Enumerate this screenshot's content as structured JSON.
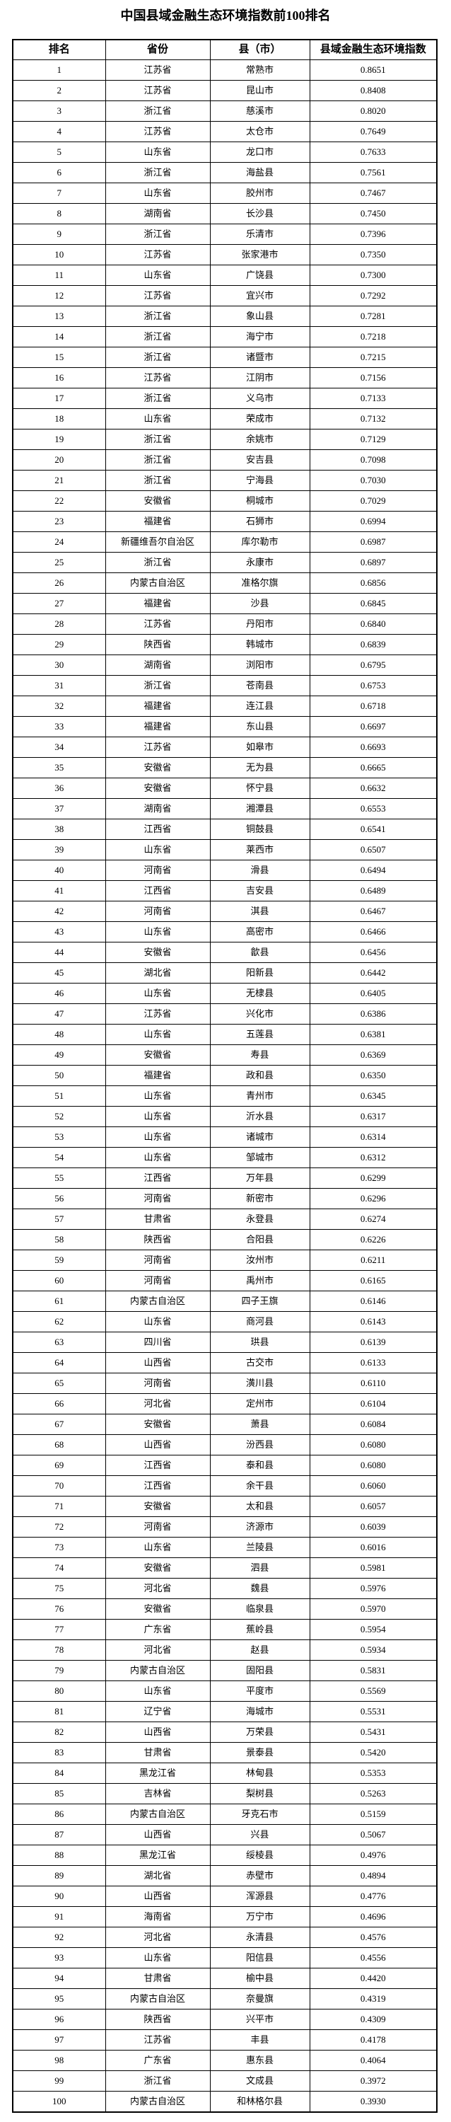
{
  "title": "中国县域金融生态环境指数前100排名",
  "table": {
    "columns": [
      "排名",
      "省份",
      "县（市）",
      "县域金融生态环境指数"
    ],
    "rows": [
      [
        "1",
        "江苏省",
        "常熟市",
        "0.8651"
      ],
      [
        "2",
        "江苏省",
        "昆山市",
        "0.8408"
      ],
      [
        "3",
        "浙江省",
        "慈溪市",
        "0.8020"
      ],
      [
        "4",
        "江苏省",
        "太仓市",
        "0.7649"
      ],
      [
        "5",
        "山东省",
        "龙口市",
        "0.7633"
      ],
      [
        "6",
        "浙江省",
        "海盐县",
        "0.7561"
      ],
      [
        "7",
        "山东省",
        "胶州市",
        "0.7467"
      ],
      [
        "8",
        "湖南省",
        "长沙县",
        "0.7450"
      ],
      [
        "9",
        "浙江省",
        "乐清市",
        "0.7396"
      ],
      [
        "10",
        "江苏省",
        "张家港市",
        "0.7350"
      ],
      [
        "11",
        "山东省",
        "广饶县",
        "0.7300"
      ],
      [
        "12",
        "江苏省",
        "宜兴市",
        "0.7292"
      ],
      [
        "13",
        "浙江省",
        "象山县",
        "0.7281"
      ],
      [
        "14",
        "浙江省",
        "海宁市",
        "0.7218"
      ],
      [
        "15",
        "浙江省",
        "诸暨市",
        "0.7215"
      ],
      [
        "16",
        "江苏省",
        "江阴市",
        "0.7156"
      ],
      [
        "17",
        "浙江省",
        "义乌市",
        "0.7133"
      ],
      [
        "18",
        "山东省",
        "荣成市",
        "0.7132"
      ],
      [
        "19",
        "浙江省",
        "余姚市",
        "0.7129"
      ],
      [
        "20",
        "浙江省",
        "安吉县",
        "0.7098"
      ],
      [
        "21",
        "浙江省",
        "宁海县",
        "0.7030"
      ],
      [
        "22",
        "安徽省",
        "桐城市",
        "0.7029"
      ],
      [
        "23",
        "福建省",
        "石狮市",
        "0.6994"
      ],
      [
        "24",
        "新疆维吾尔自治区",
        "库尔勒市",
        "0.6987"
      ],
      [
        "25",
        "浙江省",
        "永康市",
        "0.6897"
      ],
      [
        "26",
        "内蒙古自治区",
        "准格尔旗",
        "0.6856"
      ],
      [
        "27",
        "福建省",
        "沙县",
        "0.6845"
      ],
      [
        "28",
        "江苏省",
        "丹阳市",
        "0.6840"
      ],
      [
        "29",
        "陕西省",
        "韩城市",
        "0.6839"
      ],
      [
        "30",
        "湖南省",
        "浏阳市",
        "0.6795"
      ],
      [
        "31",
        "浙江省",
        "苍南县",
        "0.6753"
      ],
      [
        "32",
        "福建省",
        "连江县",
        "0.6718"
      ],
      [
        "33",
        "福建省",
        "东山县",
        "0.6697"
      ],
      [
        "34",
        "江苏省",
        "如皋市",
        "0.6693"
      ],
      [
        "35",
        "安徽省",
        "无为县",
        "0.6665"
      ],
      [
        "36",
        "安徽省",
        "怀宁县",
        "0.6632"
      ],
      [
        "37",
        "湖南省",
        "湘潭县",
        "0.6553"
      ],
      [
        "38",
        "江西省",
        "铜鼓县",
        "0.6541"
      ],
      [
        "39",
        "山东省",
        "莱西市",
        "0.6507"
      ],
      [
        "40",
        "河南省",
        "滑县",
        "0.6494"
      ],
      [
        "41",
        "江西省",
        "吉安县",
        "0.6489"
      ],
      [
        "42",
        "河南省",
        "淇县",
        "0.6467"
      ],
      [
        "43",
        "山东省",
        "高密市",
        "0.6466"
      ],
      [
        "44",
        "安徽省",
        "歙县",
        "0.6456"
      ],
      [
        "45",
        "湖北省",
        "阳新县",
        "0.6442"
      ],
      [
        "46",
        "山东省",
        "无棣县",
        "0.6405"
      ],
      [
        "47",
        "江苏省",
        "兴化市",
        "0.6386"
      ],
      [
        "48",
        "山东省",
        "五莲县",
        "0.6381"
      ],
      [
        "49",
        "安徽省",
        "寿县",
        "0.6369"
      ],
      [
        "50",
        "福建省",
        "政和县",
        "0.6350"
      ],
      [
        "51",
        "山东省",
        "青州市",
        "0.6345"
      ],
      [
        "52",
        "山东省",
        "沂水县",
        "0.6317"
      ],
      [
        "53",
        "山东省",
        "诸城市",
        "0.6314"
      ],
      [
        "54",
        "山东省",
        "邹城市",
        "0.6312"
      ],
      [
        "55",
        "江西省",
        "万年县",
        "0.6299"
      ],
      [
        "56",
        "河南省",
        "新密市",
        "0.6296"
      ],
      [
        "57",
        "甘肃省",
        "永登县",
        "0.6274"
      ],
      [
        "58",
        "陕西省",
        "合阳县",
        "0.6226"
      ],
      [
        "59",
        "河南省",
        "汝州市",
        "0.6211"
      ],
      [
        "60",
        "河南省",
        "禹州市",
        "0.6165"
      ],
      [
        "61",
        "内蒙古自治区",
        "四子王旗",
        "0.6146"
      ],
      [
        "62",
        "山东省",
        "商河县",
        "0.6143"
      ],
      [
        "63",
        "四川省",
        "珙县",
        "0.6139"
      ],
      [
        "64",
        "山西省",
        "古交市",
        "0.6133"
      ],
      [
        "65",
        "河南省",
        "潢川县",
        "0.6110"
      ],
      [
        "66",
        "河北省",
        "定州市",
        "0.6104"
      ],
      [
        "67",
        "安徽省",
        "萧县",
        "0.6084"
      ],
      [
        "68",
        "山西省",
        "汾西县",
        "0.6080"
      ],
      [
        "69",
        "江西省",
        "泰和县",
        "0.6080"
      ],
      [
        "70",
        "江西省",
        "余干县",
        "0.6060"
      ],
      [
        "71",
        "安徽省",
        "太和县",
        "0.6057"
      ],
      [
        "72",
        "河南省",
        "济源市",
        "0.6039"
      ],
      [
        "73",
        "山东省",
        "兰陵县",
        "0.6016"
      ],
      [
        "74",
        "安徽省",
        "泗县",
        "0.5981"
      ],
      [
        "75",
        "河北省",
        "魏县",
        "0.5976"
      ],
      [
        "76",
        "安徽省",
        "临泉县",
        "0.5970"
      ],
      [
        "77",
        "广东省",
        "蕉岭县",
        "0.5954"
      ],
      [
        "78",
        "河北省",
        "赵县",
        "0.5934"
      ],
      [
        "79",
        "内蒙古自治区",
        "固阳县",
        "0.5831"
      ],
      [
        "80",
        "山东省",
        "平度市",
        "0.5569"
      ],
      [
        "81",
        "辽宁省",
        "海城市",
        "0.5531"
      ],
      [
        "82",
        "山西省",
        "万荣县",
        "0.5431"
      ],
      [
        "83",
        "甘肃省",
        "景泰县",
        "0.5420"
      ],
      [
        "84",
        "黑龙江省",
        "林甸县",
        "0.5353"
      ],
      [
        "85",
        "吉林省",
        "梨树县",
        "0.5263"
      ],
      [
        "86",
        "内蒙古自治区",
        "牙克石市",
        "0.5159"
      ],
      [
        "87",
        "山西省",
        "兴县",
        "0.5067"
      ],
      [
        "88",
        "黑龙江省",
        "绥棱县",
        "0.4976"
      ],
      [
        "89",
        "湖北省",
        "赤壁市",
        "0.4894"
      ],
      [
        "90",
        "山西省",
        "浑源县",
        "0.4776"
      ],
      [
        "91",
        "海南省",
        "万宁市",
        "0.4696"
      ],
      [
        "92",
        "河北省",
        "永清县",
        "0.4576"
      ],
      [
        "93",
        "山东省",
        "阳信县",
        "0.4556"
      ],
      [
        "94",
        "甘肃省",
        "榆中县",
        "0.4420"
      ],
      [
        "95",
        "内蒙古自治区",
        "奈曼旗",
        "0.4319"
      ],
      [
        "96",
        "陕西省",
        "兴平市",
        "0.4309"
      ],
      [
        "97",
        "江苏省",
        "丰县",
        "0.4178"
      ],
      [
        "98",
        "广东省",
        "惠东县",
        "0.4064"
      ],
      [
        "99",
        "浙江省",
        "文成县",
        "0.3972"
      ],
      [
        "100",
        "内蒙古自治区",
        "和林格尔县",
        "0.3930"
      ]
    ]
  },
  "colors": {
    "border": "#000000",
    "text": "#000000",
    "background": "#ffffff"
  }
}
